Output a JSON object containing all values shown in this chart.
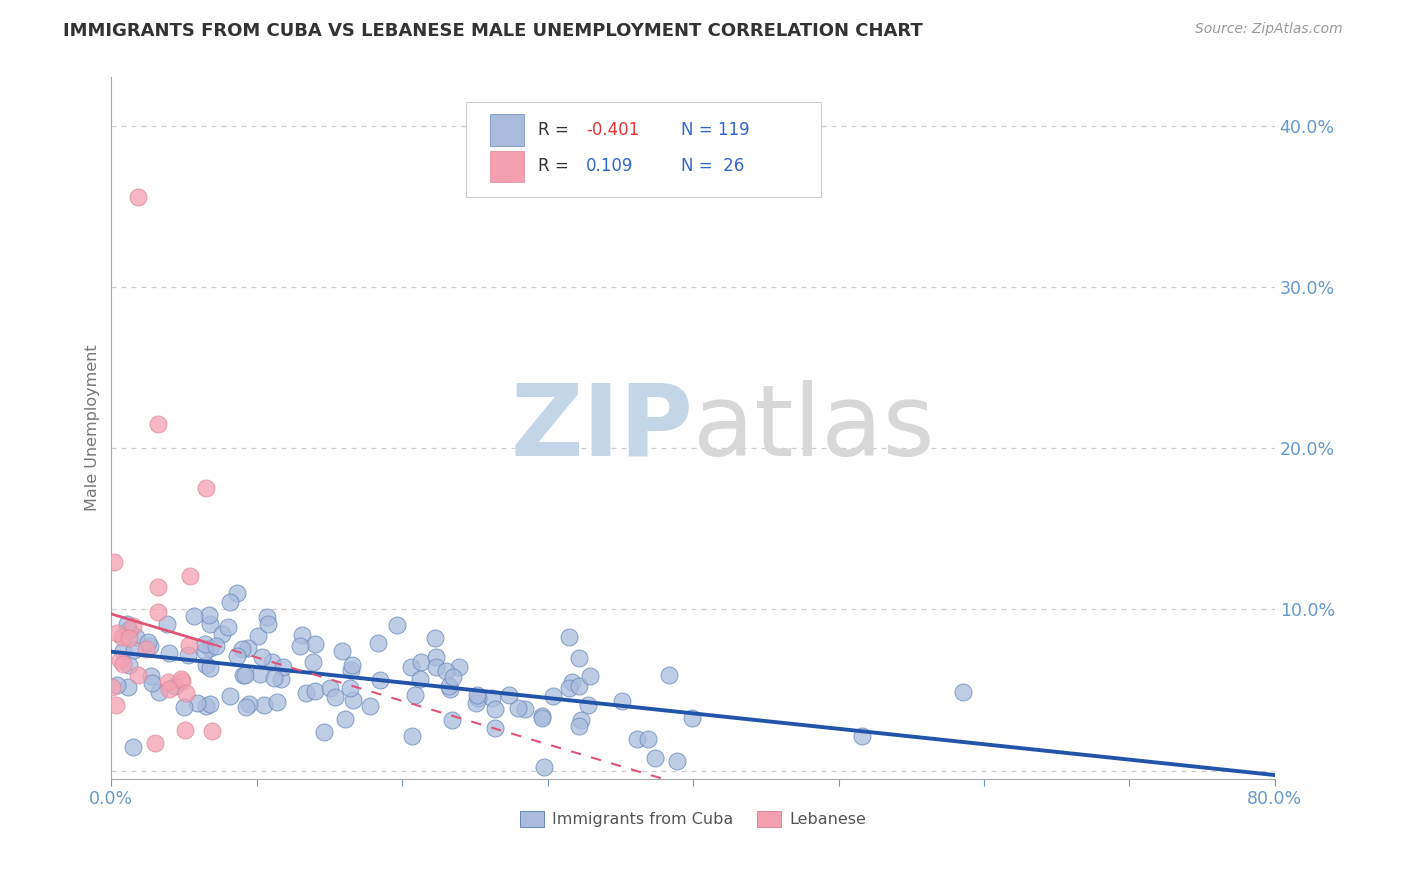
{
  "title": "IMMIGRANTS FROM CUBA VS LEBANESE MALE UNEMPLOYMENT CORRELATION CHART",
  "source_text": "Source: ZipAtlas.com",
  "ylabel": "Male Unemployment",
  "xlim": [
    0.0,
    0.8
  ],
  "ylim": [
    -0.005,
    0.43
  ],
  "grid_color": "#cccccc",
  "background_color": "#ffffff",
  "title_color": "#333333",
  "axis_color": "#aaaaaa",
  "tick_color": "#6699cc",
  "series1_color": "#aabbdd",
  "series1_edge": "#6688bb",
  "series2_color": "#f4a0b0",
  "series2_edge": "#dd8899",
  "trend1_color": "#2255aa",
  "trend2_color": "#dd5577",
  "r1": -0.401,
  "r2": 0.109,
  "n1": 119,
  "n2": 26,
  "seed": 7,
  "figsize": [
    14.06,
    8.92
  ],
  "dpi": 100,
  "watermark_zip_color": "#c5d5e8",
  "watermark_atlas_color": "#d8d8d8"
}
